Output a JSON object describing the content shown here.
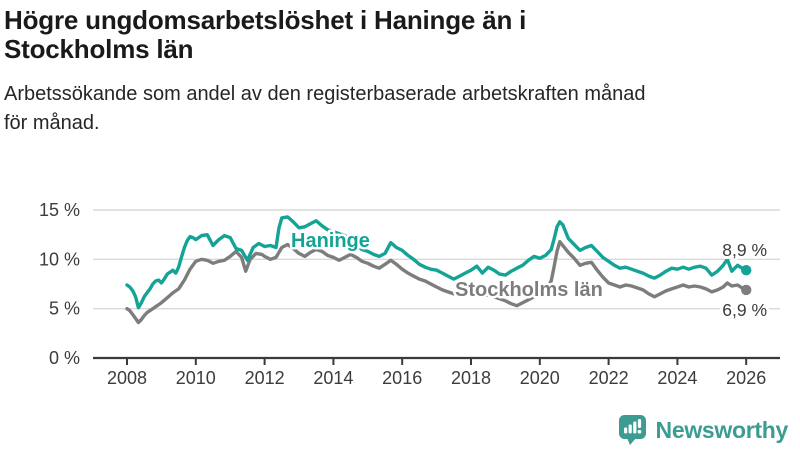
{
  "header": {
    "title_line1": "Högre ungdomsarbetslöshet i Haninge än i",
    "title_line2": "Stockholms län",
    "subtitle_line1": "Arbetssökande som andel av den registerbaserade arbetskraften månad",
    "subtitle_line2": "för månad."
  },
  "footer": {
    "brand": "Newsworthy",
    "logo_icon": "bar-chart-speech-bubble-icon"
  },
  "colors": {
    "haninge_line": "#14a396",
    "stockholm_line": "#7d7d7d",
    "axis_text": "#3c3c3c",
    "gridline": "#d9d9d9",
    "axis_line": "#3a3a3a",
    "brand_teal": "#3d9c92",
    "title_text": "#1a1a1a"
  },
  "chart_data": {
    "type": "line",
    "title": "Högre ungdomsarbetslöshet i Haninge än i Stockholms län",
    "subtitle": "Arbetssökande som andel av den registerbaserade arbetskraften månad för månad.",
    "xlabel": "",
    "ylabel": "%",
    "x_range": [
      2007.0,
      2027.0
    ],
    "ylim": [
      0,
      15
    ],
    "grid": "horizontal",
    "legend_position": "inline-labels",
    "y_ticks": [
      {
        "value": 0,
        "label": "0 %"
      },
      {
        "value": 5,
        "label": "5 %"
      },
      {
        "value": 10,
        "label": "10 %"
      },
      {
        "value": 15,
        "label": "15 %"
      }
    ],
    "x_ticks": [
      {
        "value": 2008,
        "label": "2008"
      },
      {
        "value": 2010,
        "label": "2010"
      },
      {
        "value": 2012,
        "label": "2012"
      },
      {
        "value": 2014,
        "label": "2014"
      },
      {
        "value": 2016,
        "label": "2016"
      },
      {
        "value": 2018,
        "label": "2018"
      },
      {
        "value": 2020,
        "label": "2020"
      },
      {
        "value": 2022,
        "label": "2022"
      },
      {
        "value": 2024,
        "label": "2024"
      },
      {
        "value": 2026,
        "label": "2026"
      }
    ],
    "series": [
      {
        "name": "Stockholms län",
        "color": "#7d7d7d",
        "end_label": "6,9 %",
        "end_value": 6.9,
        "points": [
          [
            2008.0,
            5.0
          ],
          [
            2008.08,
            4.8
          ],
          [
            2008.17,
            4.4
          ],
          [
            2008.25,
            4.0
          ],
          [
            2008.33,
            3.6
          ],
          [
            2008.42,
            3.9
          ],
          [
            2008.5,
            4.3
          ],
          [
            2008.58,
            4.6
          ],
          [
            2008.67,
            4.8
          ],
          [
            2008.75,
            5.0
          ],
          [
            2008.83,
            5.2
          ],
          [
            2008.92,
            5.4
          ],
          [
            2009.0,
            5.6
          ],
          [
            2009.17,
            6.1
          ],
          [
            2009.33,
            6.6
          ],
          [
            2009.5,
            7.0
          ],
          [
            2009.67,
            7.9
          ],
          [
            2009.83,
            9.0
          ],
          [
            2010.0,
            9.8
          ],
          [
            2010.17,
            10.0
          ],
          [
            2010.33,
            9.9
          ],
          [
            2010.5,
            9.6
          ],
          [
            2010.67,
            9.8
          ],
          [
            2010.83,
            9.9
          ],
          [
            2011.0,
            10.3
          ],
          [
            2011.17,
            10.8
          ],
          [
            2011.33,
            10.2
          ],
          [
            2011.45,
            8.8
          ],
          [
            2011.58,
            10.0
          ],
          [
            2011.75,
            10.6
          ],
          [
            2011.92,
            10.5
          ],
          [
            2012.0,
            10.3
          ],
          [
            2012.17,
            10.0
          ],
          [
            2012.33,
            10.2
          ],
          [
            2012.5,
            11.2
          ],
          [
            2012.67,
            11.5
          ],
          [
            2012.83,
            11.1
          ],
          [
            2013.0,
            10.6
          ],
          [
            2013.17,
            10.3
          ],
          [
            2013.33,
            10.7
          ],
          [
            2013.5,
            11.0
          ],
          [
            2013.67,
            10.8
          ],
          [
            2013.83,
            10.4
          ],
          [
            2014.0,
            10.2
          ],
          [
            2014.17,
            9.9
          ],
          [
            2014.33,
            10.2
          ],
          [
            2014.5,
            10.5
          ],
          [
            2014.67,
            10.2
          ],
          [
            2014.83,
            9.8
          ],
          [
            2015.0,
            9.6
          ],
          [
            2015.17,
            9.3
          ],
          [
            2015.33,
            9.1
          ],
          [
            2015.5,
            9.5
          ],
          [
            2015.67,
            9.9
          ],
          [
            2015.83,
            9.5
          ],
          [
            2016.0,
            9.0
          ],
          [
            2016.17,
            8.6
          ],
          [
            2016.33,
            8.3
          ],
          [
            2016.5,
            8.0
          ],
          [
            2016.67,
            7.8
          ],
          [
            2016.83,
            7.5
          ],
          [
            2017.0,
            7.2
          ],
          [
            2017.17,
            6.9
          ],
          [
            2017.33,
            6.7
          ],
          [
            2017.5,
            6.5
          ],
          [
            2017.67,
            6.6
          ],
          [
            2017.83,
            6.7
          ],
          [
            2018.0,
            6.6
          ],
          [
            2018.17,
            6.5
          ],
          [
            2018.33,
            6.3
          ],
          [
            2018.5,
            6.4
          ],
          [
            2018.67,
            6.2
          ],
          [
            2018.83,
            6.0
          ],
          [
            2019.0,
            5.8
          ],
          [
            2019.17,
            5.5
          ],
          [
            2019.33,
            5.3
          ],
          [
            2019.5,
            5.6
          ],
          [
            2019.67,
            5.9
          ],
          [
            2019.83,
            6.2
          ],
          [
            2020.0,
            6.4
          ],
          [
            2020.17,
            6.9
          ],
          [
            2020.33,
            7.8
          ],
          [
            2020.42,
            9.3
          ],
          [
            2020.5,
            10.8
          ],
          [
            2020.58,
            11.8
          ],
          [
            2020.67,
            11.4
          ],
          [
            2020.83,
            10.7
          ],
          [
            2021.0,
            10.1
          ],
          [
            2021.17,
            9.4
          ],
          [
            2021.33,
            9.6
          ],
          [
            2021.5,
            9.7
          ],
          [
            2021.67,
            8.9
          ],
          [
            2021.83,
            8.2
          ],
          [
            2022.0,
            7.6
          ],
          [
            2022.17,
            7.4
          ],
          [
            2022.33,
            7.2
          ],
          [
            2022.5,
            7.4
          ],
          [
            2022.67,
            7.3
          ],
          [
            2022.83,
            7.1
          ],
          [
            2023.0,
            6.9
          ],
          [
            2023.17,
            6.5
          ],
          [
            2023.33,
            6.2
          ],
          [
            2023.5,
            6.5
          ],
          [
            2023.67,
            6.8
          ],
          [
            2023.83,
            7.0
          ],
          [
            2024.0,
            7.2
          ],
          [
            2024.17,
            7.4
          ],
          [
            2024.33,
            7.2
          ],
          [
            2024.5,
            7.3
          ],
          [
            2024.67,
            7.2
          ],
          [
            2024.83,
            7.0
          ],
          [
            2025.0,
            6.7
          ],
          [
            2025.17,
            6.9
          ],
          [
            2025.33,
            7.2
          ],
          [
            2025.45,
            7.6
          ],
          [
            2025.58,
            7.3
          ],
          [
            2025.75,
            7.4
          ],
          [
            2025.88,
            7.1
          ],
          [
            2026.0,
            6.9
          ]
        ],
        "label_pos": {
          "x": 455,
          "y": 296
        }
      },
      {
        "name": "Haninge",
        "color": "#14a396",
        "end_label": "8,9 %",
        "end_value": 8.9,
        "points": [
          [
            2008.0,
            7.4
          ],
          [
            2008.08,
            7.2
          ],
          [
            2008.17,
            6.8
          ],
          [
            2008.25,
            6.2
          ],
          [
            2008.33,
            5.1
          ],
          [
            2008.42,
            5.6
          ],
          [
            2008.5,
            6.2
          ],
          [
            2008.58,
            6.6
          ],
          [
            2008.67,
            7.0
          ],
          [
            2008.75,
            7.5
          ],
          [
            2008.83,
            7.8
          ],
          [
            2008.92,
            7.9
          ],
          [
            2009.0,
            7.6
          ],
          [
            2009.08,
            8.0
          ],
          [
            2009.17,
            8.5
          ],
          [
            2009.25,
            8.7
          ],
          [
            2009.33,
            8.9
          ],
          [
            2009.42,
            8.6
          ],
          [
            2009.5,
            9.2
          ],
          [
            2009.58,
            10.2
          ],
          [
            2009.67,
            11.2
          ],
          [
            2009.75,
            11.9
          ],
          [
            2009.83,
            12.3
          ],
          [
            2009.92,
            12.2
          ],
          [
            2010.0,
            12.0
          ],
          [
            2010.17,
            12.4
          ],
          [
            2010.33,
            12.5
          ],
          [
            2010.5,
            11.4
          ],
          [
            2010.67,
            12.0
          ],
          [
            2010.83,
            12.4
          ],
          [
            2011.0,
            12.2
          ],
          [
            2011.17,
            11.1
          ],
          [
            2011.33,
            10.9
          ],
          [
            2011.5,
            9.9
          ],
          [
            2011.67,
            11.2
          ],
          [
            2011.83,
            11.6
          ],
          [
            2012.0,
            11.3
          ],
          [
            2012.17,
            11.4
          ],
          [
            2012.33,
            11.2
          ],
          [
            2012.42,
            13.2
          ],
          [
            2012.5,
            14.2
          ],
          [
            2012.67,
            14.3
          ],
          [
            2012.83,
            13.8
          ],
          [
            2013.0,
            13.2
          ],
          [
            2013.17,
            13.3
          ],
          [
            2013.33,
            13.6
          ],
          [
            2013.5,
            13.9
          ],
          [
            2013.67,
            13.4
          ],
          [
            2013.83,
            13.0
          ],
          [
            2014.0,
            12.8
          ],
          [
            2014.17,
            12.6
          ],
          [
            2014.33,
            12.4
          ],
          [
            2014.5,
            11.9
          ],
          [
            2014.67,
            11.4
          ],
          [
            2014.83,
            11.0
          ],
          [
            2015.0,
            10.8
          ],
          [
            2015.17,
            10.5
          ],
          [
            2015.33,
            10.3
          ],
          [
            2015.5,
            10.6
          ],
          [
            2015.67,
            11.7
          ],
          [
            2015.83,
            11.2
          ],
          [
            2016.0,
            10.9
          ],
          [
            2016.17,
            10.4
          ],
          [
            2016.33,
            10.0
          ],
          [
            2016.5,
            9.5
          ],
          [
            2016.67,
            9.2
          ],
          [
            2016.83,
            9.0
          ],
          [
            2017.0,
            8.9
          ],
          [
            2017.17,
            8.6
          ],
          [
            2017.33,
            8.3
          ],
          [
            2017.5,
            8.0
          ],
          [
            2017.67,
            8.3
          ],
          [
            2017.83,
            8.6
          ],
          [
            2018.0,
            8.9
          ],
          [
            2018.17,
            9.3
          ],
          [
            2018.33,
            8.6
          ],
          [
            2018.5,
            9.2
          ],
          [
            2018.67,
            8.9
          ],
          [
            2018.83,
            8.5
          ],
          [
            2019.0,
            8.4
          ],
          [
            2019.17,
            8.8
          ],
          [
            2019.33,
            9.1
          ],
          [
            2019.5,
            9.4
          ],
          [
            2019.67,
            9.9
          ],
          [
            2019.83,
            10.3
          ],
          [
            2020.0,
            10.1
          ],
          [
            2020.17,
            10.4
          ],
          [
            2020.33,
            11.0
          ],
          [
            2020.42,
            12.1
          ],
          [
            2020.5,
            13.3
          ],
          [
            2020.58,
            13.8
          ],
          [
            2020.67,
            13.5
          ],
          [
            2020.83,
            12.1
          ],
          [
            2021.0,
            11.5
          ],
          [
            2021.17,
            10.9
          ],
          [
            2021.33,
            11.2
          ],
          [
            2021.5,
            11.4
          ],
          [
            2021.67,
            10.8
          ],
          [
            2021.83,
            10.2
          ],
          [
            2022.0,
            9.8
          ],
          [
            2022.17,
            9.4
          ],
          [
            2022.33,
            9.1
          ],
          [
            2022.5,
            9.2
          ],
          [
            2022.67,
            9.0
          ],
          [
            2022.83,
            8.8
          ],
          [
            2023.0,
            8.6
          ],
          [
            2023.17,
            8.3
          ],
          [
            2023.33,
            8.1
          ],
          [
            2023.5,
            8.4
          ],
          [
            2023.67,
            8.8
          ],
          [
            2023.83,
            9.1
          ],
          [
            2024.0,
            9.0
          ],
          [
            2024.17,
            9.2
          ],
          [
            2024.33,
            9.0
          ],
          [
            2024.5,
            9.2
          ],
          [
            2024.67,
            9.3
          ],
          [
            2024.83,
            9.1
          ],
          [
            2025.0,
            8.4
          ],
          [
            2025.17,
            8.8
          ],
          [
            2025.33,
            9.4
          ],
          [
            2025.45,
            10.0
          ],
          [
            2025.58,
            8.8
          ],
          [
            2025.75,
            9.4
          ],
          [
            2025.88,
            9.1
          ],
          [
            2026.0,
            8.9
          ]
        ],
        "label_pos": {
          "x": 291,
          "y": 247
        }
      }
    ]
  }
}
